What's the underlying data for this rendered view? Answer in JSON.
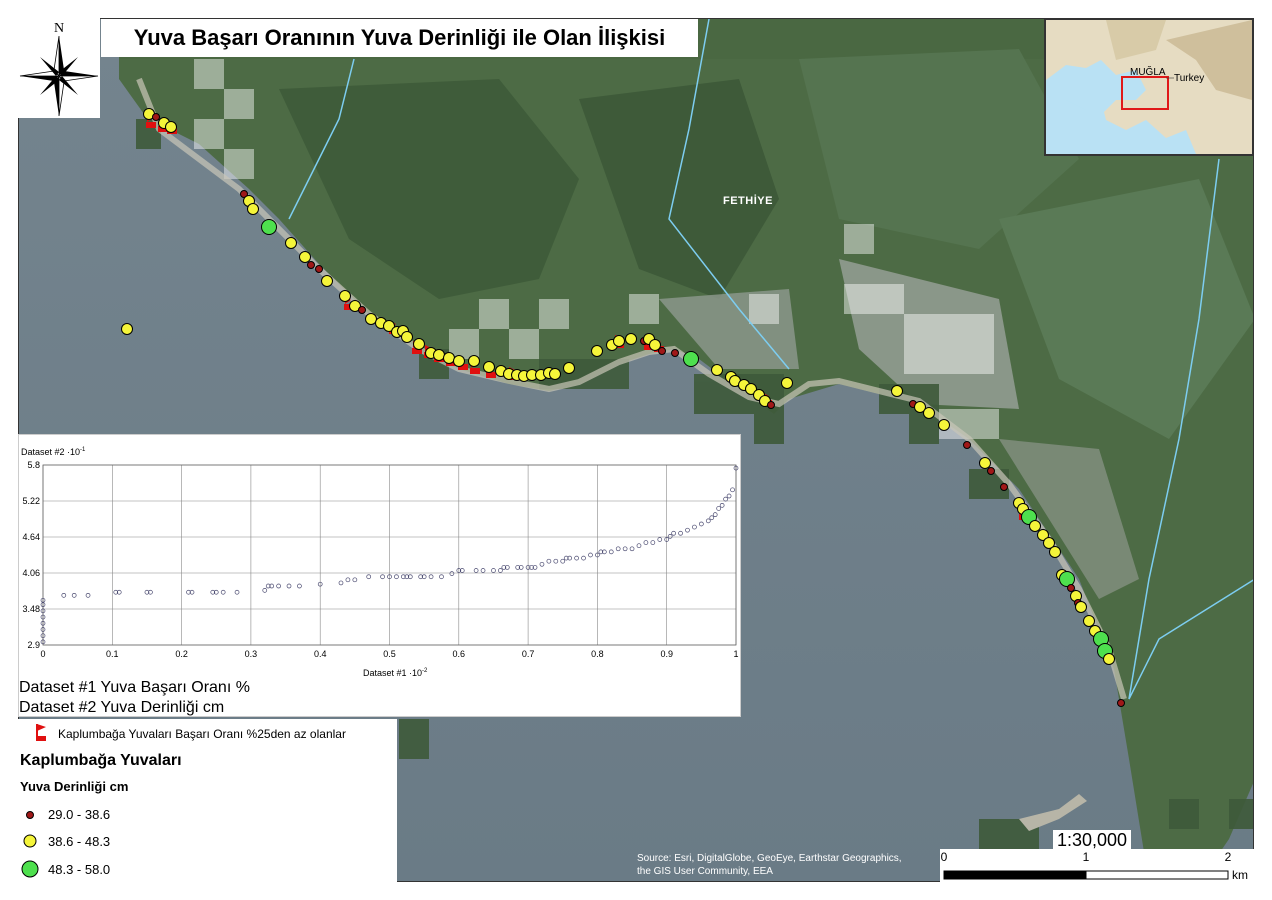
{
  "title": "Yuva Başarı Oranının Yuva Derinliği ile Olan İlişkisi",
  "north_arrow": {
    "letter": "N",
    "icon": "north-arrow-icon"
  },
  "inset": {
    "region_label": "MUĞLA",
    "country_label": "Turkey"
  },
  "place_label": "FETHİYE",
  "chart": {
    "y_title": "Dataset #2 ·10",
    "y_exp": "-1",
    "x_title": "Dataset #1 ·10",
    "x_exp": "-2",
    "y_ticks": [
      "5.8",
      "5.22",
      "4.64",
      "4.06",
      "3.48",
      "2.9"
    ],
    "x_ticks": [
      "0",
      "0.1",
      "0.2",
      "0.3",
      "0.4",
      "0.5",
      "0.6",
      "0.7",
      "0.8",
      "0.9",
      "1"
    ]
  },
  "chart_data": {
    "type": "scatter",
    "title": "",
    "xlabel": "Dataset #1 ·10-2",
    "ylabel": "Dataset #2 ·10-1",
    "xlim": [
      0,
      1
    ],
    "ylim": [
      2.9,
      5.8
    ],
    "grid": true,
    "x": [
      0.0,
      0.0,
      0.0,
      0.0,
      0.0,
      0.0,
      0.0,
      0.0,
      0.03,
      0.045,
      0.065,
      0.105,
      0.11,
      0.15,
      0.155,
      0.21,
      0.215,
      0.245,
      0.25,
      0.26,
      0.28,
      0.32,
      0.325,
      0.33,
      0.34,
      0.355,
      0.37,
      0.4,
      0.43,
      0.44,
      0.45,
      0.47,
      0.49,
      0.5,
      0.51,
      0.52,
      0.525,
      0.53,
      0.545,
      0.55,
      0.56,
      0.575,
      0.59,
      0.6,
      0.605,
      0.625,
      0.635,
      0.65,
      0.66,
      0.665,
      0.67,
      0.685,
      0.69,
      0.7,
      0.705,
      0.71,
      0.72,
      0.73,
      0.74,
      0.75,
      0.755,
      0.76,
      0.77,
      0.78,
      0.79,
      0.8,
      0.805,
      0.81,
      0.82,
      0.83,
      0.84,
      0.85,
      0.86,
      0.87,
      0.88,
      0.89,
      0.9,
      0.905,
      0.91,
      0.92,
      0.93,
      0.94,
      0.95,
      0.96,
      0.965,
      0.97,
      0.975,
      0.98,
      0.985,
      0.99,
      0.995,
      1.0
    ],
    "y": [
      2.95,
      3.05,
      3.15,
      3.25,
      3.35,
      3.45,
      3.55,
      3.62,
      3.7,
      3.7,
      3.7,
      3.75,
      3.75,
      3.75,
      3.75,
      3.75,
      3.75,
      3.75,
      3.75,
      3.75,
      3.75,
      3.78,
      3.85,
      3.85,
      3.85,
      3.85,
      3.85,
      3.88,
      3.9,
      3.95,
      3.95,
      4.0,
      4.0,
      4.0,
      4.0,
      4.0,
      4.0,
      4.0,
      4.0,
      4.0,
      4.0,
      4.0,
      4.05,
      4.1,
      4.1,
      4.1,
      4.1,
      4.1,
      4.1,
      4.15,
      4.15,
      4.15,
      4.15,
      4.15,
      4.15,
      4.15,
      4.2,
      4.25,
      4.25,
      4.25,
      4.3,
      4.3,
      4.3,
      4.3,
      4.35,
      4.35,
      4.4,
      4.4,
      4.4,
      4.45,
      4.45,
      4.45,
      4.5,
      4.55,
      4.55,
      4.6,
      4.6,
      4.65,
      4.7,
      4.7,
      4.75,
      4.8,
      4.85,
      4.9,
      4.95,
      5.0,
      5.1,
      5.15,
      5.25,
      5.3,
      5.4,
      5.75
    ]
  },
  "dataset_lines": [
    "Dataset #1 Yuva Başarı Oranı %",
    "Dataset #2 Yuva Derinliği cm"
  ],
  "legend": {
    "flag_label": "Kaplumbağa Yuvaları Başarı Oranı %25den az olanlar",
    "heading": "Kaplumbağa Yuvaları",
    "subheading": "Yuva Derinliği cm",
    "items": [
      {
        "label": "29.0 - 38.6",
        "color": "#a01818"
      },
      {
        "label": "38.6 - 48.3",
        "color": "#f5f53a"
      },
      {
        "label": "48.3 - 58.0",
        "color": "#4ee04e"
      }
    ],
    "flag_color": "#e01010"
  },
  "scale": {
    "ratio": "1:30,000",
    "ticks": [
      "0",
      "1",
      "2"
    ],
    "unit": "km"
  },
  "attribution": [
    "Source: Esri, DigitalGlobe, GeoEye, Earthstar Geographics,",
    "the GIS User Community, EEA"
  ],
  "colors": {
    "sea": "#6e7f8a",
    "land": "#4c6a44",
    "water_line": "#6fc3e8"
  }
}
